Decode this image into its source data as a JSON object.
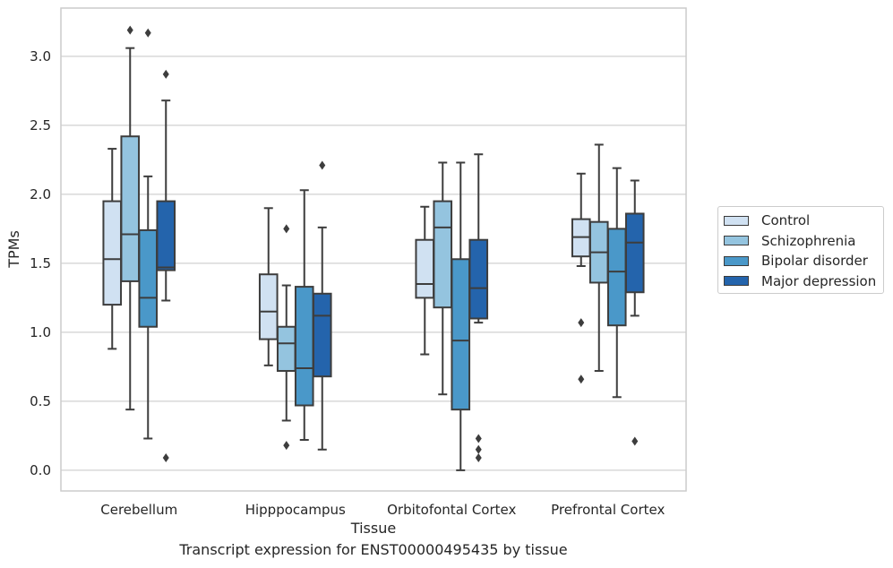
{
  "chart_data": {
    "type": "box",
    "xlabel": "Tissue",
    "ylabel": "TPMs",
    "caption": "Transcript expression for ENST00000495435 by tissue",
    "ylim": [
      -0.15,
      3.35
    ],
    "yticks": [
      "0.0",
      "0.5",
      "1.0",
      "1.5",
      "2.0",
      "2.5",
      "3.0"
    ],
    "grid": "horizontal",
    "legend_position": "right",
    "categories": [
      "Cerebellum",
      "Hipppocampus",
      "Orbitofontal Cortex",
      "Prefrontal Cortex"
    ],
    "series": [
      {
        "name": "Control",
        "color": "#d0e1f2",
        "boxes": [
          {
            "whislo": 0.88,
            "q1": 1.2,
            "med": 1.53,
            "q3": 1.95,
            "whishi": 2.33,
            "fliers": []
          },
          {
            "whislo": 0.76,
            "q1": 0.95,
            "med": 1.15,
            "q3": 1.42,
            "whishi": 1.9,
            "fliers": []
          },
          {
            "whislo": 0.84,
            "q1": 1.25,
            "med": 1.35,
            "q3": 1.67,
            "whishi": 1.91,
            "fliers": []
          },
          {
            "whislo": 1.48,
            "q1": 1.55,
            "med": 1.69,
            "q3": 1.82,
            "whishi": 2.15,
            "fliers": [
              1.07,
              0.66
            ]
          }
        ]
      },
      {
        "name": "Schizophrenia",
        "color": "#94c4df",
        "boxes": [
          {
            "whislo": 0.44,
            "q1": 1.37,
            "med": 1.71,
            "q3": 2.42,
            "whishi": 3.06,
            "fliers": [
              3.19
            ]
          },
          {
            "whislo": 0.36,
            "q1": 0.72,
            "med": 0.92,
            "q3": 1.04,
            "whishi": 1.34,
            "fliers": [
              1.75,
              0.18
            ]
          },
          {
            "whislo": 0.55,
            "q1": 1.18,
            "med": 1.76,
            "q3": 1.95,
            "whishi": 2.23,
            "fliers": []
          },
          {
            "whislo": 0.72,
            "q1": 1.36,
            "med": 1.58,
            "q3": 1.8,
            "whishi": 2.36,
            "fliers": []
          }
        ]
      },
      {
        "name": "Bipolar disorder",
        "color": "#4a98c9",
        "boxes": [
          {
            "whislo": 0.23,
            "q1": 1.04,
            "med": 1.25,
            "q3": 1.74,
            "whishi": 2.13,
            "fliers": [
              3.17
            ]
          },
          {
            "whislo": 0.22,
            "q1": 0.47,
            "med": 0.74,
            "q3": 1.33,
            "whishi": 2.03,
            "fliers": []
          },
          {
            "whislo": 0.0,
            "q1": 0.44,
            "med": 0.94,
            "q3": 1.53,
            "whishi": 2.23,
            "fliers": []
          },
          {
            "whislo": 0.53,
            "q1": 1.05,
            "med": 1.44,
            "q3": 1.75,
            "whishi": 2.19,
            "fliers": []
          }
        ]
      },
      {
        "name": "Major depression",
        "color": "#2464ac",
        "boxes": [
          {
            "whislo": 1.23,
            "q1": 1.45,
            "med": 1.47,
            "q3": 1.95,
            "whishi": 2.68,
            "fliers": [
              2.87,
              0.09
            ]
          },
          {
            "whislo": 0.15,
            "q1": 0.68,
            "med": 1.12,
            "q3": 1.28,
            "whishi": 1.76,
            "fliers": [
              2.21
            ]
          },
          {
            "whislo": 1.07,
            "q1": 1.1,
            "med": 1.32,
            "q3": 1.67,
            "whishi": 2.29,
            "fliers": [
              0.23,
              0.15,
              0.09
            ]
          },
          {
            "whislo": 1.12,
            "q1": 1.29,
            "med": 1.65,
            "q3": 1.86,
            "whishi": 2.1,
            "fliers": [
              0.21
            ]
          }
        ]
      }
    ]
  }
}
